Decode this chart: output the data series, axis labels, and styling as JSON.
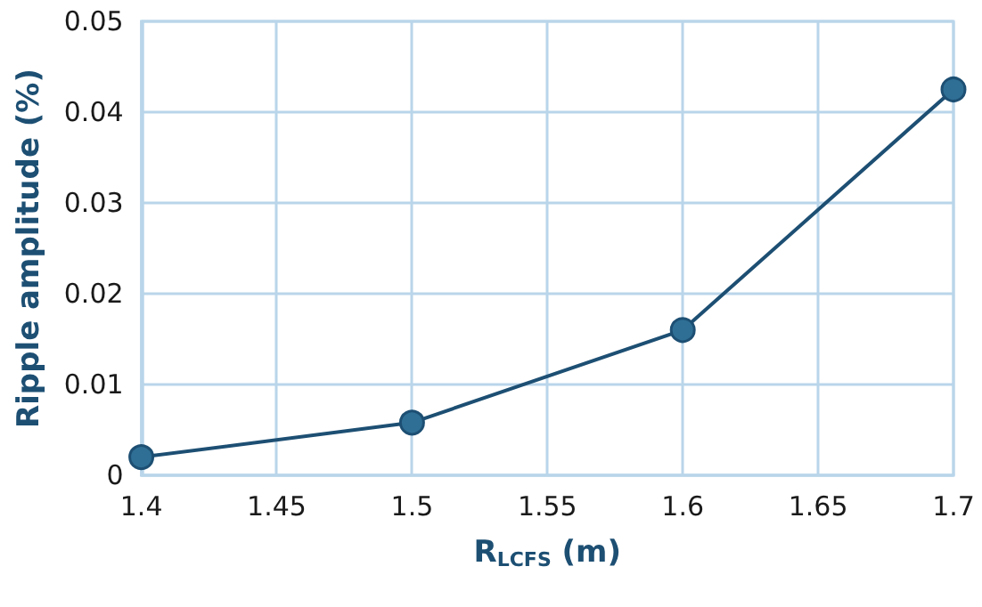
{
  "chart_data": {
    "type": "line",
    "xlabel": "R$_{LCFS}$ (m)",
    "ylabel": "Ripple amplitude (%)",
    "x": [
      1.4,
      1.5,
      1.6,
      1.7
    ],
    "series": [
      {
        "color": "#1d4f73",
        "values": [
          0.002,
          0.0058,
          0.016,
          0.0425
        ]
      }
    ],
    "xlim": [
      1.4,
      1.7
    ],
    "xticks": [
      1.4,
      1.45,
      1.5,
      1.55,
      1.6,
      1.65,
      1.7
    ],
    "ylim": [
      0,
      0.05
    ],
    "yticks": [
      0,
      0.01,
      0.02,
      0.03,
      0.04,
      0.05
    ],
    "grid": true,
    "marker": "circle",
    "line_style": "solid"
  }
}
